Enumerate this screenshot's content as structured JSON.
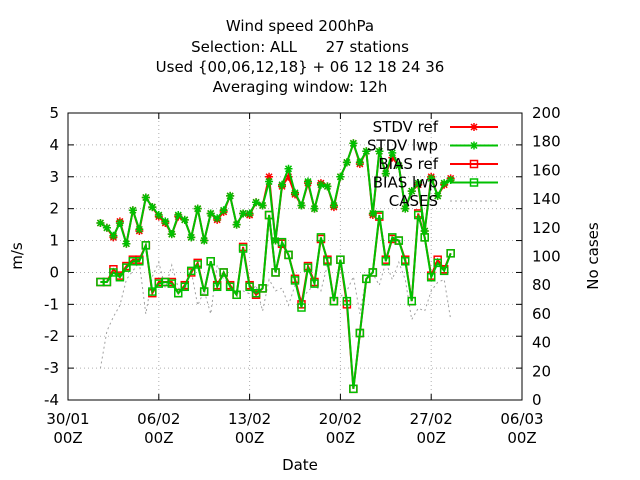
{
  "chart_data": {
    "type": "line",
    "title_lines": [
      "Wind speed 200hPa",
      "Selection: ALL      27 stations",
      "Used {00,06,12,18} + 06 12 18 24 36",
      "Averaging window: 12h"
    ],
    "xlabel": "Date",
    "ylabel": "m/s",
    "y2label": "No cases",
    "ylim": [
      -4,
      5
    ],
    "y2lim": [
      0,
      200
    ],
    "yticks": [
      "5",
      "4",
      "3",
      "2",
      "1",
      "0",
      "-1",
      "-2",
      "-3",
      "-4"
    ],
    "y2ticks": [
      "200",
      "180",
      "160",
      "140",
      "120",
      "100",
      "80",
      "60",
      "40",
      "20",
      "0"
    ],
    "xlim_days": [
      0,
      35
    ],
    "xticks": [
      {
        "day": 0,
        "line1": "30/01",
        "line2": "00Z"
      },
      {
        "day": 7,
        "line1": "06/02",
        "line2": "00Z"
      },
      {
        "day": 14,
        "line1": "13/02",
        "line2": "00Z"
      },
      {
        "day": 21,
        "line1": "20/02",
        "line2": "00Z"
      },
      {
        "day": 28,
        "line1": "27/02",
        "line2": "00Z"
      },
      {
        "day": 35,
        "line1": "06/03",
        "line2": "00Z"
      }
    ],
    "grid": true,
    "legend_position": "top-right",
    "x_days": [
      2.5,
      3.0,
      3.5,
      4.0,
      4.5,
      5.0,
      5.5,
      6.0,
      6.5,
      7.0,
      7.5,
      8.0,
      8.5,
      9.0,
      9.5,
      10.0,
      10.5,
      11.0,
      11.5,
      12.0,
      12.5,
      13.0,
      13.5,
      14.0,
      14.5,
      15.0,
      15.5,
      16.0,
      16.5,
      17.0,
      17.5,
      18.0,
      18.5,
      19.0,
      19.5,
      20.0,
      20.5,
      21.0,
      21.5,
      22.0,
      22.5,
      23.0,
      23.5,
      24.0,
      24.5,
      25.0,
      25.5,
      26.0,
      26.5,
      27.0,
      27.5,
      28.0,
      28.5,
      29.0,
      29.5,
      30.0
    ],
    "series": [
      {
        "name": "STDV ref",
        "color": "#ff0000",
        "marker": "star",
        "axis": "y",
        "values": [
          1.55,
          1.4,
          1.1,
          1.6,
          0.9,
          1.95,
          1.3,
          2.35,
          2.05,
          1.75,
          1.55,
          1.2,
          1.75,
          1.65,
          1.1,
          2.0,
          1.0,
          1.85,
          1.65,
          1.9,
          2.4,
          1.5,
          1.85,
          1.8,
          2.2,
          2.1,
          3.0,
          1.0,
          2.7,
          3.0,
          2.45,
          2.1,
          2.8,
          2.0,
          2.8,
          2.7,
          2.05,
          3.0,
          3.45,
          4.05,
          3.4,
          3.8,
          1.8,
          3.8,
          3.1,
          3.6,
          3.35,
          2.0,
          2.55,
          2.75,
          1.3,
          3.0,
          2.4,
          2.75,
          2.95,
          null
        ]
      },
      {
        "name": "STDV lwp",
        "color": "#00c000",
        "marker": "star",
        "axis": "y",
        "values": [
          1.55,
          1.4,
          1.15,
          1.55,
          0.9,
          1.95,
          1.35,
          2.35,
          2.05,
          1.8,
          1.6,
          1.2,
          1.8,
          1.65,
          1.1,
          2.0,
          1.0,
          1.85,
          1.7,
          1.95,
          2.4,
          1.5,
          1.85,
          1.85,
          2.2,
          2.1,
          2.85,
          1.0,
          2.75,
          3.25,
          2.5,
          2.1,
          2.85,
          2.0,
          2.75,
          2.7,
          2.1,
          3.0,
          3.45,
          4.05,
          3.45,
          3.8,
          1.85,
          3.8,
          3.1,
          3.75,
          3.35,
          2.0,
          2.55,
          2.8,
          1.3,
          2.95,
          2.4,
          2.8,
          2.9,
          null
        ]
      },
      {
        "name": "BIAS ref",
        "color": "#ff0000",
        "marker": "square",
        "axis": "y",
        "values": [
          -0.3,
          -0.3,
          0.1,
          -0.1,
          0.2,
          0.4,
          0.4,
          0.85,
          -0.65,
          -0.3,
          -0.3,
          -0.3,
          -0.65,
          -0.4,
          0.0,
          0.3,
          -0.6,
          0.35,
          -0.4,
          0.0,
          -0.4,
          -0.7,
          0.8,
          -0.4,
          -0.7,
          -0.5,
          1.8,
          0.0,
          0.9,
          0.55,
          -0.2,
          -1.0,
          0.2,
          -0.3,
          1.05,
          0.4,
          -0.9,
          0.4,
          -1.0,
          -3.65,
          -1.9,
          -0.2,
          0.0,
          1.75,
          0.4,
          1.05,
          1.0,
          0.4,
          -0.9,
          1.85,
          1.1,
          -0.1,
          0.4,
          0.1,
          0.6,
          null
        ]
      },
      {
        "name": "BIAS lwp",
        "color": "#00c000",
        "marker": "square",
        "axis": "y",
        "values": [
          -0.3,
          -0.3,
          0.0,
          -0.15,
          0.15,
          0.35,
          0.35,
          0.85,
          -0.6,
          -0.35,
          -0.3,
          -0.35,
          -0.65,
          -0.45,
          0.05,
          0.25,
          -0.6,
          0.35,
          -0.45,
          0.0,
          -0.45,
          -0.7,
          0.75,
          -0.45,
          -0.65,
          -0.5,
          1.8,
          0.0,
          0.95,
          0.55,
          -0.25,
          -1.1,
          0.15,
          -0.35,
          1.1,
          0.35,
          -0.9,
          0.4,
          -0.9,
          -3.65,
          -1.9,
          -0.2,
          0.0,
          1.8,
          0.35,
          1.1,
          1.0,
          0.35,
          -0.9,
          1.8,
          1.1,
          -0.15,
          0.3,
          0.05,
          0.6,
          null
        ]
      },
      {
        "name": "CASES",
        "color": "#a0a0a0",
        "marker": "dash",
        "axis": "y2",
        "values": [
          22,
          48,
          58,
          66,
          84,
          90,
          96,
          60,
          86,
          96,
          78,
          94,
          78,
          76,
          90,
          66,
          76,
          60,
          94,
          84,
          82,
          74,
          76,
          74,
          80,
          62,
          84,
          76,
          78,
          66,
          80,
          70,
          76,
          80,
          76,
          94,
          70,
          72,
          76,
          86,
          60,
          86,
          88,
          80,
          96,
          84,
          96,
          84,
          56,
          64,
          62,
          76,
          82,
          84,
          56,
          null
        ]
      }
    ]
  }
}
